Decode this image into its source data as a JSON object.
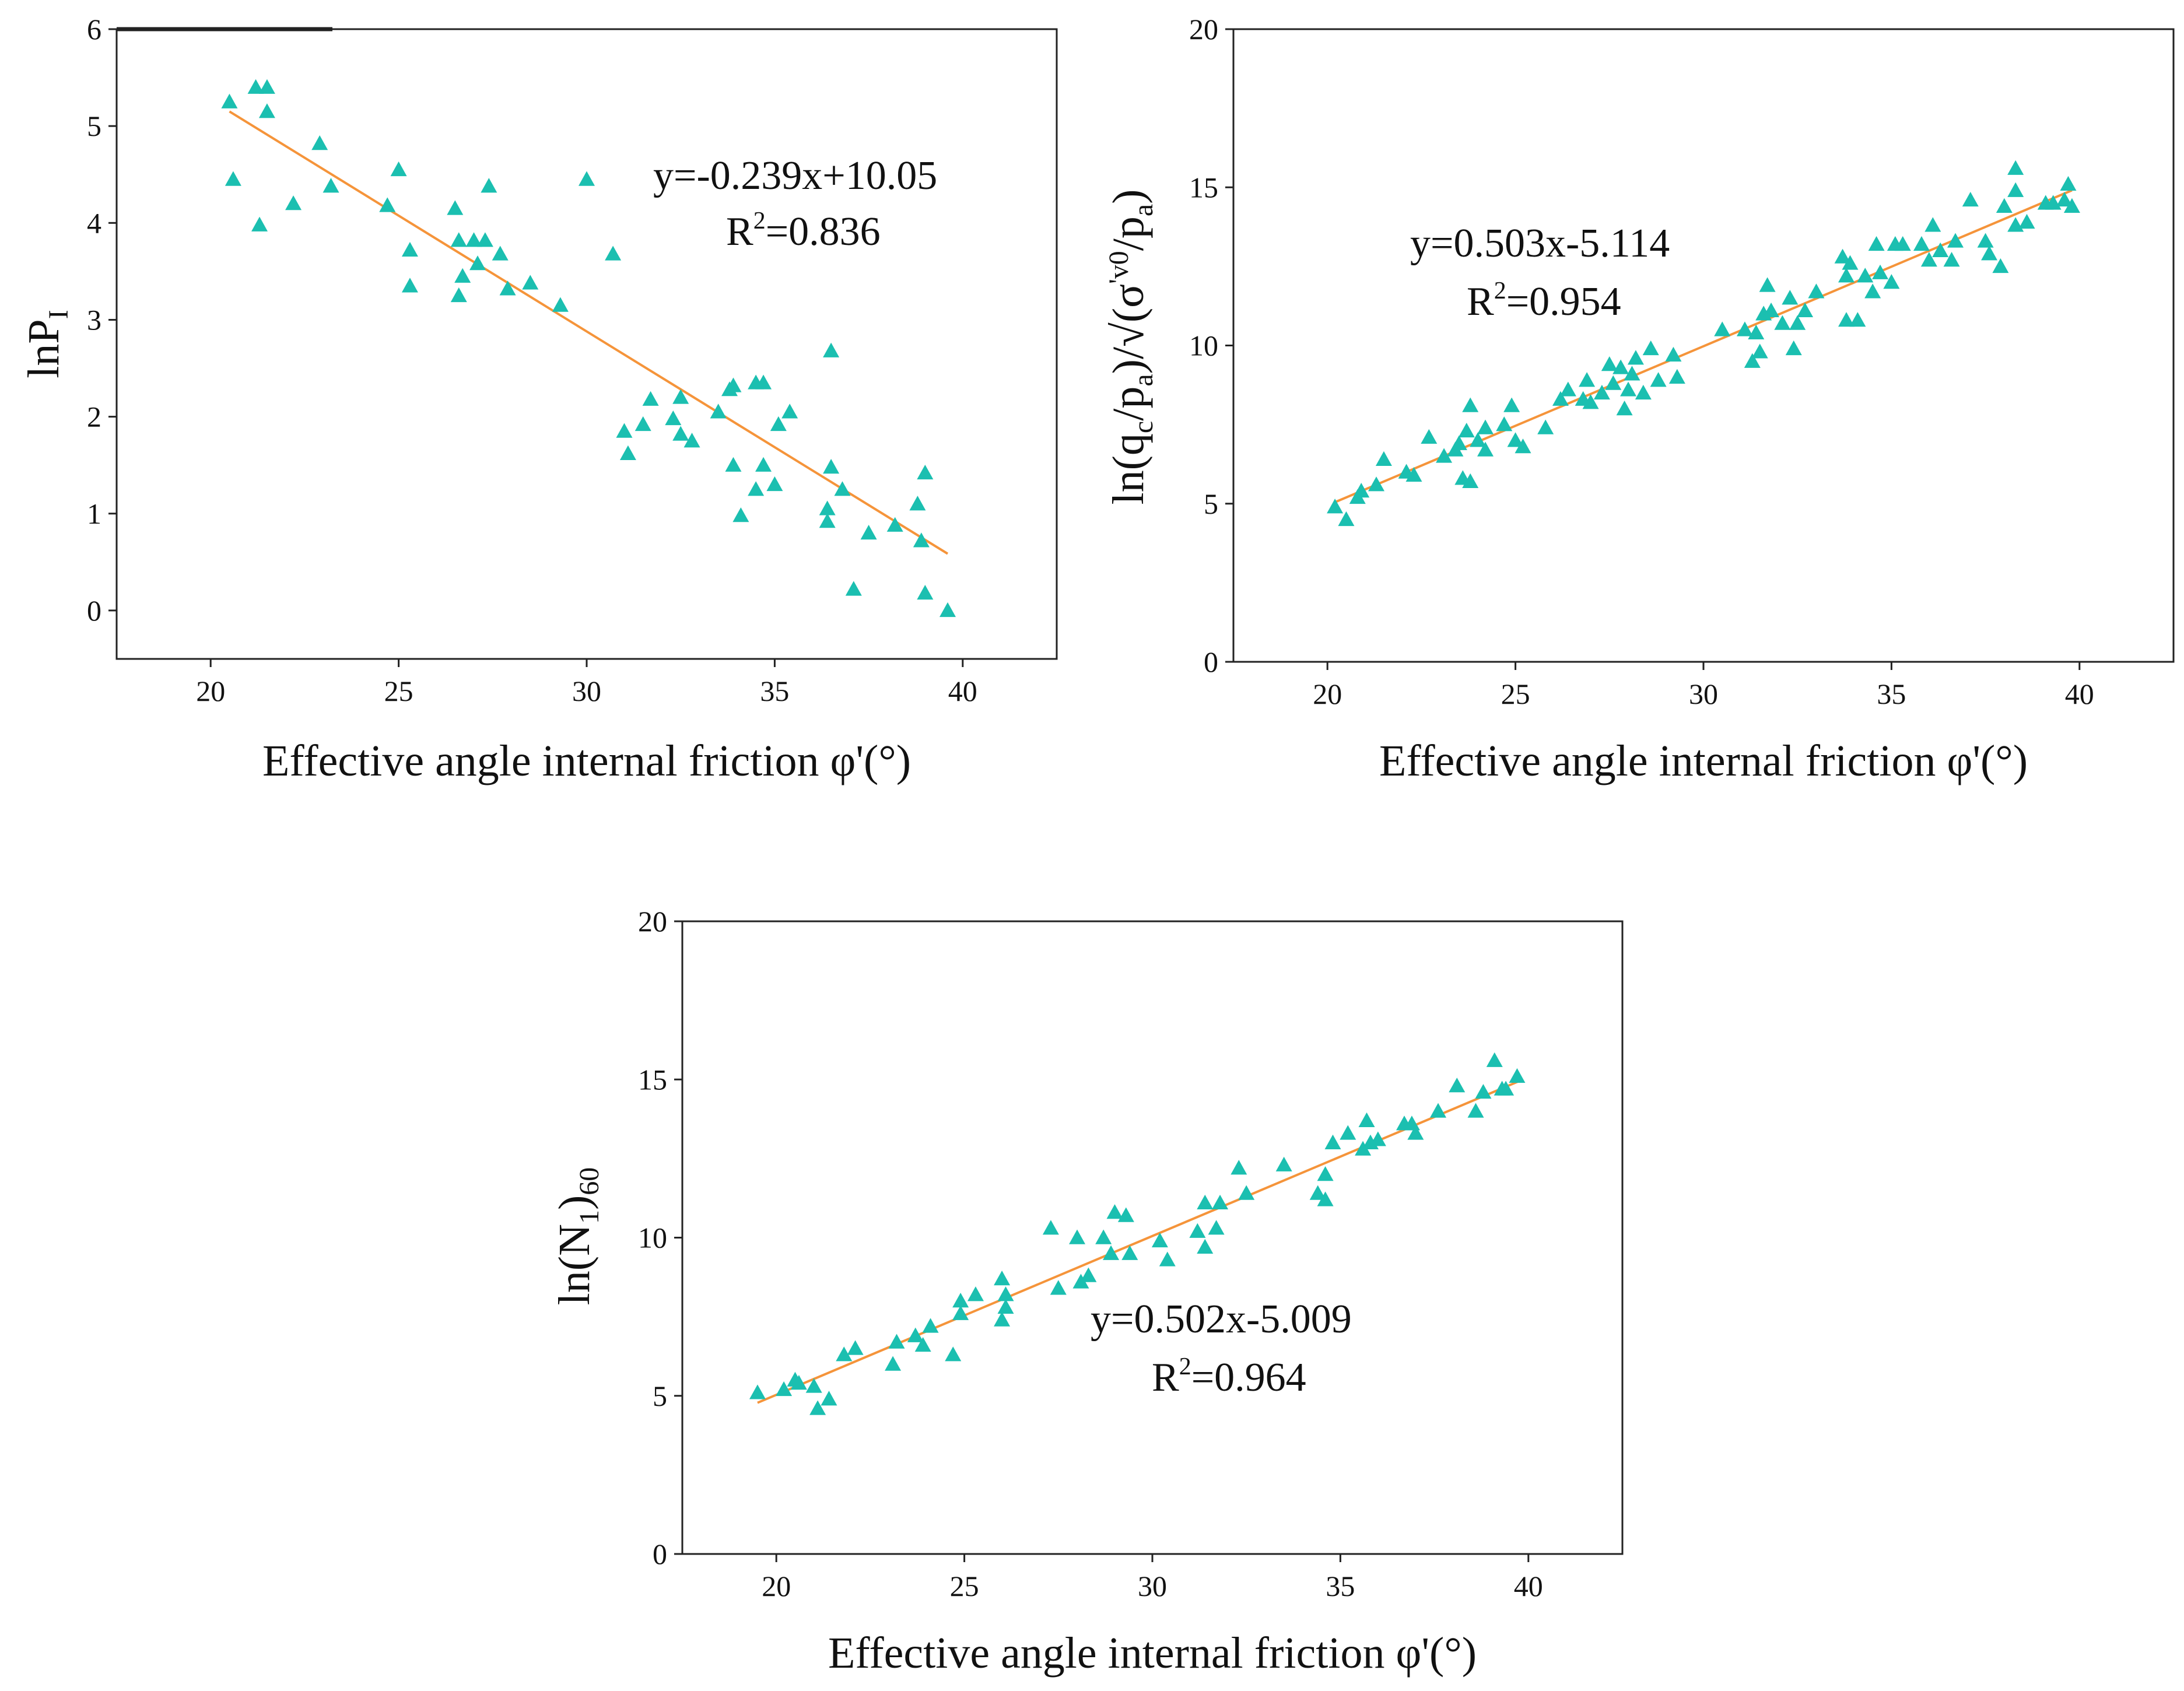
{
  "colors": {
    "marker": "#1BBFB0",
    "fit_line": "#F5943A",
    "axis": "#222222"
  },
  "chart_data": [
    {
      "type": "scatter",
      "id": "a",
      "xlabel": "Effective angle internal friction φ'(°)",
      "ylabel": "lnPI",
      "ylabel_main": "lnP",
      "ylabel_sub": "I",
      "xlim": [
        17.5,
        42.5
      ],
      "ylim": [
        -0.5,
        6
      ],
      "xticks": [
        20,
        25,
        30,
        35,
        40
      ],
      "yticks": [
        0,
        1,
        2,
        3,
        4,
        5,
        6
      ],
      "equation": "y=-0.239x+10.05",
      "r2_label": "R",
      "r2_sup": "2",
      "r2_value": "=0.836",
      "fit": {
        "slope": -0.239,
        "intercept": 10.05,
        "x_range": [
          20.5,
          39.6
        ]
      },
      "points": [
        [
          20.5,
          5.25
        ],
        [
          21.2,
          5.4
        ],
        [
          21.5,
          5.4
        ],
        [
          21.5,
          5.15
        ],
        [
          20.6,
          4.45
        ],
        [
          21.3,
          3.98
        ],
        [
          22.2,
          4.2
        ],
        [
          22.9,
          4.82
        ],
        [
          23.2,
          4.38
        ],
        [
          24.7,
          4.18
        ],
        [
          25.0,
          4.55
        ],
        [
          25.3,
          3.72
        ],
        [
          25.3,
          3.35
        ],
        [
          26.5,
          4.15
        ],
        [
          26.6,
          3.82
        ],
        [
          26.7,
          3.45
        ],
        [
          26.6,
          3.25
        ],
        [
          27.0,
          3.82
        ],
        [
          27.1,
          3.58
        ],
        [
          27.3,
          3.82
        ],
        [
          27.4,
          4.38
        ],
        [
          27.7,
          3.68
        ],
        [
          27.9,
          3.32
        ],
        [
          28.5,
          3.38
        ],
        [
          29.3,
          3.15
        ],
        [
          30.0,
          4.45
        ],
        [
          30.7,
          3.68
        ],
        [
          31.0,
          1.85
        ],
        [
          31.1,
          1.62
        ],
        [
          31.5,
          1.92
        ],
        [
          31.7,
          2.18
        ],
        [
          32.3,
          1.98
        ],
        [
          32.5,
          2.2
        ],
        [
          32.5,
          1.82
        ],
        [
          32.8,
          1.75
        ],
        [
          33.5,
          2.05
        ],
        [
          33.8,
          2.28
        ],
        [
          33.9,
          2.32
        ],
        [
          33.9,
          1.5
        ],
        [
          34.1,
          0.98
        ],
        [
          34.5,
          2.35
        ],
        [
          34.5,
          1.25
        ],
        [
          34.7,
          2.35
        ],
        [
          34.7,
          1.5
        ],
        [
          35.0,
          1.3
        ],
        [
          35.1,
          1.92
        ],
        [
          35.4,
          2.05
        ],
        [
          36.4,
          1.05
        ],
        [
          36.4,
          0.92
        ],
        [
          36.5,
          2.68
        ],
        [
          36.5,
          1.48
        ],
        [
          36.8,
          1.25
        ],
        [
          37.1,
          0.22
        ],
        [
          37.5,
          0.8
        ],
        [
          38.2,
          0.88
        ],
        [
          38.8,
          1.1
        ],
        [
          38.9,
          0.72
        ],
        [
          39.0,
          1.42
        ],
        [
          39.0,
          0.18
        ],
        [
          39.6,
          0.0
        ]
      ]
    },
    {
      "type": "scatter",
      "id": "b",
      "xlabel": "Effective angle internal friction φ'(°)",
      "ylabel": "ln(qc/pa)/√(σ'v0/pa)",
      "xlim": [
        17.5,
        42.5
      ],
      "ylim": [
        0,
        20
      ],
      "xticks": [
        20,
        25,
        30,
        35,
        40
      ],
      "yticks": [
        0,
        5,
        10,
        15,
        20
      ],
      "equation": "y=0.503x-5.114",
      "r2_label": "R",
      "r2_sup": "2",
      "r2_value": "=0.954",
      "fit": {
        "slope": 0.503,
        "intercept": -5.114,
        "x_range": [
          20.2,
          39.8
        ]
      },
      "points": [
        [
          20.2,
          4.9
        ],
        [
          20.5,
          4.5
        ],
        [
          20.8,
          5.2
        ],
        [
          20.9,
          5.4
        ],
        [
          21.3,
          5.6
        ],
        [
          21.5,
          6.4
        ],
        [
          22.1,
          6.0
        ],
        [
          22.3,
          5.9
        ],
        [
          22.7,
          7.1
        ],
        [
          23.1,
          6.5
        ],
        [
          23.4,
          6.7
        ],
        [
          23.5,
          6.9
        ],
        [
          23.6,
          5.8
        ],
        [
          23.7,
          7.3
        ],
        [
          23.8,
          8.1
        ],
        [
          23.8,
          5.7
        ],
        [
          24.0,
          7.0
        ],
        [
          24.2,
          6.7
        ],
        [
          24.2,
          7.4
        ],
        [
          24.7,
          7.5
        ],
        [
          24.9,
          8.1
        ],
        [
          25.0,
          7.0
        ],
        [
          25.2,
          6.8
        ],
        [
          25.8,
          7.4
        ],
        [
          26.2,
          8.3
        ],
        [
          26.4,
          8.6
        ],
        [
          26.8,
          8.3
        ],
        [
          26.9,
          8.9
        ],
        [
          27.0,
          8.2
        ],
        [
          27.3,
          8.5
        ],
        [
          27.5,
          9.4
        ],
        [
          27.6,
          8.8
        ],
        [
          27.8,
          9.3
        ],
        [
          27.9,
          8.0
        ],
        [
          28.0,
          8.6
        ],
        [
          28.1,
          9.1
        ],
        [
          28.2,
          9.6
        ],
        [
          28.4,
          8.5
        ],
        [
          28.6,
          9.9
        ],
        [
          28.8,
          8.9
        ],
        [
          29.2,
          9.7
        ],
        [
          29.3,
          9.0
        ],
        [
          30.5,
          10.5
        ],
        [
          31.1,
          10.5
        ],
        [
          31.3,
          9.5
        ],
        [
          31.4,
          10.4
        ],
        [
          31.5,
          9.8
        ],
        [
          31.6,
          11.0
        ],
        [
          31.7,
          11.9
        ],
        [
          31.8,
          11.1
        ],
        [
          32.1,
          10.7
        ],
        [
          32.3,
          11.5
        ],
        [
          32.4,
          9.9
        ],
        [
          32.5,
          10.7
        ],
        [
          32.7,
          11.1
        ],
        [
          33.0,
          11.7
        ],
        [
          33.7,
          12.8
        ],
        [
          33.8,
          12.2
        ],
        [
          33.8,
          10.8
        ],
        [
          33.9,
          12.6
        ],
        [
          34.1,
          10.8
        ],
        [
          34.3,
          12.2
        ],
        [
          34.5,
          11.7
        ],
        [
          34.6,
          13.2
        ],
        [
          34.7,
          12.3
        ],
        [
          35.0,
          12.0
        ],
        [
          35.1,
          13.2
        ],
        [
          35.3,
          13.2
        ],
        [
          35.8,
          13.2
        ],
        [
          36.0,
          12.7
        ],
        [
          36.1,
          13.8
        ],
        [
          36.3,
          13.0
        ],
        [
          36.6,
          12.7
        ],
        [
          36.7,
          13.3
        ],
        [
          37.1,
          14.6
        ],
        [
          37.5,
          13.3
        ],
        [
          37.6,
          12.9
        ],
        [
          37.9,
          12.5
        ],
        [
          38.0,
          14.4
        ],
        [
          38.3,
          13.8
        ],
        [
          38.3,
          14.9
        ],
        [
          38.3,
          15.6
        ],
        [
          38.6,
          13.9
        ],
        [
          39.1,
          14.5
        ],
        [
          39.3,
          14.5
        ],
        [
          39.6,
          14.6
        ],
        [
          39.7,
          15.1
        ],
        [
          39.8,
          14.4
        ]
      ]
    },
    {
      "type": "scatter",
      "id": "c",
      "xlabel": "Effective angle internal friction φ'(°)",
      "ylabel": "ln(N1)60",
      "xlim": [
        17.5,
        42.5
      ],
      "ylim": [
        0,
        20
      ],
      "xticks": [
        20,
        25,
        30,
        35,
        40
      ],
      "yticks": [
        0,
        5,
        10,
        15,
        20
      ],
      "equation": "y=0.502x-5.009",
      "r2_label": "R",
      "r2_sup": "2",
      "r2_value": "=0.964",
      "fit": {
        "slope": 0.502,
        "intercept": -5.009,
        "x_range": [
          19.5,
          39.8
        ]
      },
      "points": [
        [
          19.5,
          5.1
        ],
        [
          20.2,
          5.2
        ],
        [
          20.5,
          5.5
        ],
        [
          20.6,
          5.4
        ],
        [
          21.0,
          5.3
        ],
        [
          21.1,
          4.6
        ],
        [
          21.4,
          4.9
        ],
        [
          21.8,
          6.3
        ],
        [
          22.1,
          6.5
        ],
        [
          23.1,
          6.0
        ],
        [
          23.2,
          6.7
        ],
        [
          23.7,
          6.9
        ],
        [
          23.9,
          6.6
        ],
        [
          24.1,
          7.2
        ],
        [
          24.7,
          6.3
        ],
        [
          24.9,
          8.0
        ],
        [
          24.9,
          7.6
        ],
        [
          25.3,
          8.2
        ],
        [
          26.0,
          8.7
        ],
        [
          26.0,
          7.4
        ],
        [
          26.1,
          7.8
        ],
        [
          26.1,
          8.2
        ],
        [
          27.3,
          10.3
        ],
        [
          27.5,
          8.4
        ],
        [
          28.0,
          10.0
        ],
        [
          28.1,
          8.6
        ],
        [
          28.3,
          8.8
        ],
        [
          28.7,
          10.0
        ],
        [
          28.9,
          9.5
        ],
        [
          29.0,
          10.8
        ],
        [
          29.3,
          10.7
        ],
        [
          29.4,
          9.5
        ],
        [
          30.2,
          9.9
        ],
        [
          30.4,
          9.3
        ],
        [
          31.2,
          10.2
        ],
        [
          31.4,
          11.1
        ],
        [
          31.4,
          9.7
        ],
        [
          31.7,
          10.3
        ],
        [
          31.8,
          11.1
        ],
        [
          32.3,
          12.2
        ],
        [
          32.5,
          11.4
        ],
        [
          33.5,
          12.3
        ],
        [
          34.4,
          11.4
        ],
        [
          34.6,
          11.2
        ],
        [
          34.6,
          12.0
        ],
        [
          34.8,
          13.0
        ],
        [
          35.2,
          13.3
        ],
        [
          35.6,
          12.8
        ],
        [
          35.7,
          13.7
        ],
        [
          35.8,
          13.0
        ],
        [
          36.0,
          13.1
        ],
        [
          36.7,
          13.6
        ],
        [
          36.9,
          13.6
        ],
        [
          37.0,
          13.3
        ],
        [
          37.6,
          14.0
        ],
        [
          38.1,
          14.8
        ],
        [
          38.6,
          14.0
        ],
        [
          38.8,
          14.6
        ],
        [
          39.1,
          15.6
        ],
        [
          39.3,
          14.7
        ],
        [
          39.4,
          14.7
        ],
        [
          39.7,
          15.1
        ]
      ]
    }
  ]
}
